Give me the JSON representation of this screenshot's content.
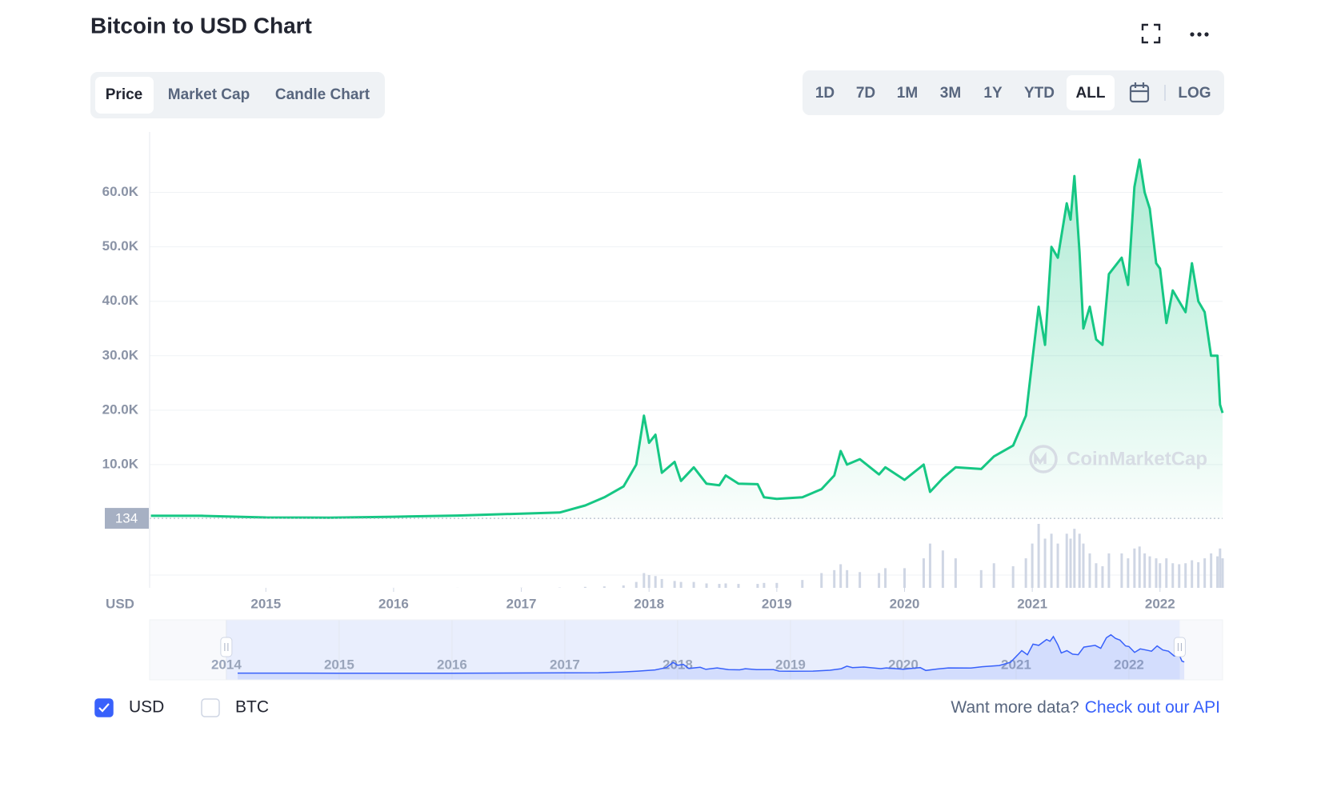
{
  "header": {
    "title": "Bitcoin to USD Chart",
    "tabs": [
      "Price",
      "Market Cap",
      "Candle Chart"
    ],
    "ranges": [
      "1D",
      "7D",
      "1M",
      "3M",
      "1Y",
      "YTD",
      "ALL"
    ],
    "log_label": "LOG"
  },
  "chart_data": {
    "type": "line",
    "x": [
      2014.1,
      2014.5,
      2015.0,
      2015.5,
      2016.0,
      2016.5,
      2017.0,
      2017.3,
      2017.5,
      2017.65,
      2017.8,
      2017.9,
      2017.96,
      2018.0,
      2018.05,
      2018.1,
      2018.2,
      2018.25,
      2018.35,
      2018.45,
      2018.55,
      2018.6,
      2018.7,
      2018.85,
      2018.9,
      2019.0,
      2019.2,
      2019.35,
      2019.45,
      2019.5,
      2019.55,
      2019.65,
      2019.8,
      2019.85,
      2020.0,
      2020.15,
      2020.2,
      2020.3,
      2020.4,
      2020.6,
      2020.7,
      2020.85,
      2020.95,
      2021.0,
      2021.05,
      2021.1,
      2021.15,
      2021.2,
      2021.27,
      2021.3,
      2021.33,
      2021.37,
      2021.4,
      2021.45,
      2021.5,
      2021.55,
      2021.6,
      2021.7,
      2021.75,
      2021.8,
      2021.84,
      2021.88,
      2021.92,
      2021.97,
      2022.0,
      2022.05,
      2022.1,
      2022.15,
      2022.2,
      2022.25,
      2022.3,
      2022.35,
      2022.4,
      2022.45,
      2022.47,
      2022.49
    ],
    "series": [
      {
        "color": "#16c784",
        "values": [
          600,
          600,
          300,
          250,
          430,
          650,
          1000,
          1200,
          2500,
          4000,
          6000,
          10000,
          19000,
          14000,
          15500,
          8500,
          10500,
          7000,
          9500,
          6500,
          6200,
          8000,
          6500,
          6400,
          4000,
          3700,
          4000,
          5500,
          8000,
          12500,
          10000,
          11000,
          8200,
          9500,
          7200,
          10000,
          5000,
          7500,
          9500,
          9200,
          11500,
          13500,
          19000,
          29000,
          39000,
          32000,
          50000,
          48000,
          58000,
          55000,
          63000,
          49000,
          35000,
          39000,
          33000,
          32000,
          45000,
          48000,
          43000,
          61000,
          66000,
          60000,
          57000,
          47000,
          46000,
          36000,
          42000,
          40000,
          38000,
          47000,
          40000,
          38000,
          30000,
          30000,
          21000,
          19500
        ]
      }
    ],
    "volume": {
      "color": "#cfd6e4",
      "values": [
        0.02,
        0.01,
        0.02,
        0.02,
        0.05,
        0.08,
        0.2,
        0.3,
        1,
        1.5,
        2.5,
        6,
        15,
        13,
        12,
        9,
        7,
        6,
        6,
        4.5,
        4,
        4.5,
        4,
        4,
        5,
        5,
        8,
        15,
        18,
        24,
        18,
        16,
        15,
        20,
        20,
        30,
        45,
        38,
        30,
        18,
        25,
        22,
        30,
        45,
        65,
        50,
        55,
        45,
        55,
        50,
        60,
        55,
        45,
        35,
        25,
        22,
        35,
        35,
        30,
        40,
        42,
        35,
        32,
        30,
        25,
        30,
        25,
        24,
        25,
        28,
        26,
        30,
        35,
        32,
        40,
        30
      ]
    },
    "xlim": [
      2014.09,
      2022.49
    ],
    "xticks": [
      2015,
      2016,
      2017,
      2018,
      2019,
      2020,
      2021,
      2022
    ],
    "ylim": [
      0,
      71100
    ],
    "yticks": [
      {
        "value": 10000,
        "label": "10.0K"
      },
      {
        "value": 20000,
        "label": "20.0K"
      },
      {
        "value": 30000,
        "label": "30.0K"
      },
      {
        "value": 40000,
        "label": "40.0K"
      },
      {
        "value": 50000,
        "label": "50.0K"
      },
      {
        "value": 60000,
        "label": "60.0K"
      }
    ],
    "grid": true,
    "y_axis_label": "USD",
    "reference_value": 134,
    "watermark": "CoinMarketCap",
    "navigator": {
      "color": "#3861fb",
      "xlim": [
        2013.32,
        2022.83
      ],
      "xticks": [
        2014,
        2015,
        2016,
        2017,
        2018,
        2019,
        2020,
        2021,
        2022
      ],
      "selection": [
        2014.0,
        2022.45
      ]
    }
  },
  "footer": {
    "currencies": [
      {
        "label": "USD",
        "checked": true
      },
      {
        "label": "BTC",
        "checked": false
      }
    ],
    "prompt": "Want more data?",
    "link": "Check out our API"
  }
}
